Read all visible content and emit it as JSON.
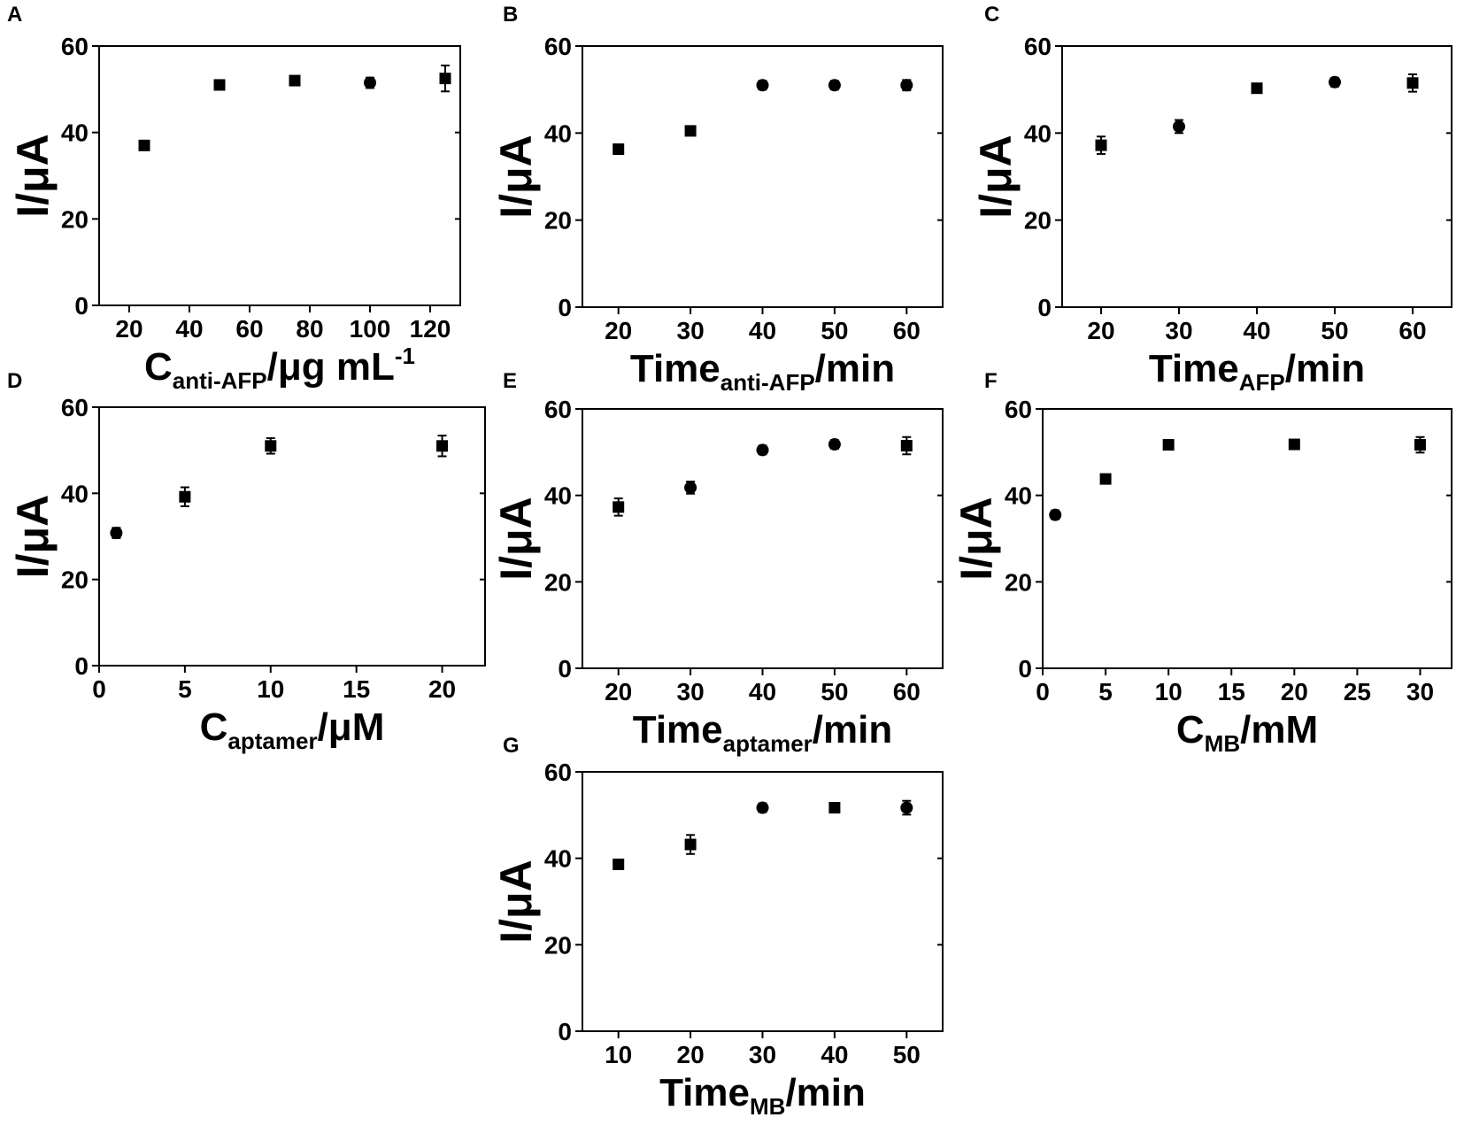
{
  "figure": {
    "panels": [
      "A",
      "B",
      "C",
      "D",
      "E",
      "F",
      "G"
    ]
  },
  "chart_data": [
    {
      "panel": "A",
      "type": "scatter",
      "ylabel": "I/μA",
      "xlabel": {
        "main": "C",
        "sub": "anti-AFP",
        "tail": "/μg mL",
        "sup": "-1"
      },
      "xlim": [
        10,
        130
      ],
      "ylim": [
        0,
        60
      ],
      "xticks": [
        20,
        40,
        60,
        80,
        100,
        120
      ],
      "yticks": [
        0,
        20,
        40,
        60
      ],
      "x": [
        25,
        50,
        75,
        100,
        125
      ],
      "y": [
        37.0,
        51.0,
        52.0,
        51.5,
        52.5
      ],
      "err": [
        0.6,
        0.8,
        0.8,
        1.2,
        3.0
      ],
      "marker": [
        "square",
        "square",
        "square",
        "circle",
        "square"
      ]
    },
    {
      "panel": "B",
      "type": "scatter",
      "ylabel": "I/μA",
      "xlabel": {
        "main": "Time",
        "sub": "anti-AFP",
        "tail": "/min",
        "sup": ""
      },
      "xlim": [
        15,
        65
      ],
      "ylim": [
        0,
        60
      ],
      "xticks": [
        20,
        30,
        40,
        50,
        60
      ],
      "yticks": [
        0,
        20,
        40,
        60
      ],
      "x": [
        20,
        30,
        40,
        50,
        60
      ],
      "y": [
        36.3,
        40.5,
        51.0,
        51.0,
        51.0
      ],
      "err": [
        0.6,
        1.0,
        1.0,
        1.0,
        1.2
      ],
      "marker": [
        "square",
        "square",
        "circle",
        "circle",
        "circle"
      ]
    },
    {
      "panel": "C",
      "type": "scatter",
      "ylabel": "I/μA",
      "xlabel": {
        "main": "Time",
        "sub": "AFP",
        "tail": "/min",
        "sup": ""
      },
      "xlim": [
        15,
        65
      ],
      "ylim": [
        0,
        60
      ],
      "xticks": [
        20,
        30,
        40,
        50,
        60
      ],
      "yticks": [
        0,
        20,
        40,
        60
      ],
      "x": [
        20,
        30,
        40,
        50,
        60
      ],
      "y": [
        37.2,
        41.5,
        50.3,
        51.7,
        51.5
      ],
      "err": [
        2.0,
        1.5,
        0.8,
        1.0,
        2.0
      ],
      "marker": [
        "square",
        "circle",
        "square",
        "circle",
        "square"
      ]
    },
    {
      "panel": "D",
      "type": "scatter",
      "ylabel": "I/μA",
      "xlabel": {
        "main": "C",
        "sub": "aptamer",
        "tail": "/μM",
        "sup": ""
      },
      "xlim": [
        0,
        22.5
      ],
      "ylim": [
        0,
        60
      ],
      "xticks": [
        0,
        5,
        10,
        15,
        20
      ],
      "yticks": [
        0,
        20,
        40,
        60
      ],
      "x": [
        1,
        5,
        10,
        20
      ],
      "y": [
        30.8,
        39.2,
        51.0,
        51.0
      ],
      "err": [
        1.2,
        2.2,
        1.8,
        2.4
      ],
      "marker": [
        "circle",
        "square",
        "square",
        "square"
      ]
    },
    {
      "panel": "E",
      "type": "scatter",
      "ylabel": "I/μA",
      "xlabel": {
        "main": "Time",
        "sub": "aptamer",
        "tail": "/min",
        "sup": ""
      },
      "xlim": [
        15,
        65
      ],
      "ylim": [
        0,
        60
      ],
      "xticks": [
        20,
        30,
        40,
        50,
        60
      ],
      "yticks": [
        0,
        20,
        40,
        60
      ],
      "x": [
        20,
        30,
        40,
        50,
        60
      ],
      "y": [
        37.3,
        41.8,
        50.5,
        51.8,
        51.5
      ],
      "err": [
        2.0,
        1.4,
        1.0,
        1.0,
        2.0
      ],
      "marker": [
        "square",
        "circle",
        "circle",
        "circle",
        "square"
      ]
    },
    {
      "panel": "F",
      "type": "scatter",
      "ylabel": "I/μA",
      "xlabel": {
        "main": "C",
        "sub": "MB",
        "tail": "/mM",
        "sup": ""
      },
      "xlim": [
        0,
        32.5
      ],
      "ylim": [
        0,
        60
      ],
      "xticks": [
        0,
        5,
        10,
        15,
        20,
        25,
        30
      ],
      "yticks": [
        0,
        20,
        40,
        60
      ],
      "x": [
        1,
        5,
        10,
        20,
        30
      ],
      "y": [
        35.5,
        43.8,
        51.7,
        51.8,
        51.7
      ],
      "err": [
        1.0,
        0.8,
        0.8,
        0.8,
        1.8
      ],
      "marker": [
        "circle",
        "square",
        "square",
        "square",
        "square"
      ]
    },
    {
      "panel": "G",
      "type": "scatter",
      "ylabel": "I/μA",
      "xlabel": {
        "main": "Time",
        "sub": "MB",
        "tail": "/min",
        "sup": ""
      },
      "xlim": [
        5,
        55
      ],
      "ylim": [
        0,
        60
      ],
      "xticks": [
        10,
        20,
        30,
        40,
        50
      ],
      "yticks": [
        0,
        20,
        40,
        60
      ],
      "x": [
        10,
        20,
        30,
        40,
        50
      ],
      "y": [
        38.6,
        43.2,
        51.7,
        51.7,
        51.7
      ],
      "err": [
        0.8,
        2.2,
        1.0,
        0.8,
        1.6
      ],
      "marker": [
        "square",
        "square",
        "circle",
        "square",
        "circle"
      ]
    }
  ]
}
